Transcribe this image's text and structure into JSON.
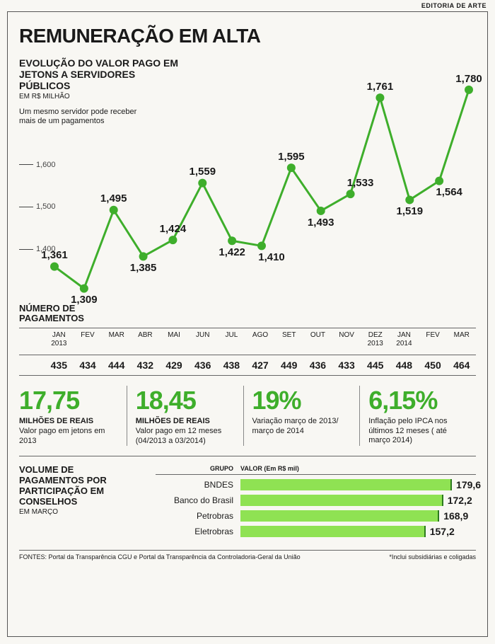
{
  "credit": "EDITORIA DE ARTE",
  "title": "REMUNERAÇÃO EM ALTA",
  "subtitle": "EVOLUÇÃO DO VALOR PAGO EM JETONS A SERVIDORES PÚBLICOS",
  "unit": "EM R$ MILHÃO",
  "note": "Um mesmo servidor pode receber mais de um pagamentos",
  "chart": {
    "type": "line",
    "ylim": [
      1300,
      1820
    ],
    "ytick_positions": [
      1400,
      1500,
      1600
    ],
    "ytick_labels": [
      "1,400",
      "1,500",
      "1,600"
    ],
    "line_color": "#3eae2b",
    "marker_color": "#3eae2b",
    "line_width": 3,
    "marker_radius": 6,
    "background_color": "#f8f7f3",
    "label_fontsize": 15,
    "points": [
      {
        "month": "JAN",
        "year": "2013",
        "value": 1361,
        "label": "1,361",
        "label_pos": "above"
      },
      {
        "month": "FEV",
        "year": "",
        "value": 1309,
        "label": "1,309",
        "label_pos": "below"
      },
      {
        "month": "MAR",
        "year": "",
        "value": 1495,
        "label": "1,495",
        "label_pos": "above"
      },
      {
        "month": "ABR",
        "year": "",
        "value": 1385,
        "label": "1,385",
        "label_pos": "below"
      },
      {
        "month": "MAI",
        "year": "",
        "value": 1424,
        "label": "1,424",
        "label_pos": "above"
      },
      {
        "month": "JUN",
        "year": "",
        "value": 1559,
        "label": "1,559",
        "label_pos": "above"
      },
      {
        "month": "JUL",
        "year": "",
        "value": 1422,
        "label": "1,422",
        "label_pos": "below"
      },
      {
        "month": "AGO",
        "year": "",
        "value": 1410,
        "label": "1,410",
        "label_pos": "below-right"
      },
      {
        "month": "SET",
        "year": "",
        "value": 1595,
        "label": "1,595",
        "label_pos": "above"
      },
      {
        "month": "OUT",
        "year": "",
        "value": 1493,
        "label": "1,493",
        "label_pos": "below"
      },
      {
        "month": "NOV",
        "year": "",
        "value": 1533,
        "label": "1,533",
        "label_pos": "above-right"
      },
      {
        "month": "DEZ",
        "year": "2013",
        "value": 1761,
        "label": "1,761",
        "label_pos": "above"
      },
      {
        "month": "JAN",
        "year": "2014",
        "value": 1519,
        "label": "1,519",
        "label_pos": "below"
      },
      {
        "month": "FEV",
        "year": "",
        "value": 1564,
        "label": "1,564",
        "label_pos": "below-right"
      },
      {
        "month": "MAR",
        "year": "",
        "value": 1780,
        "label": "1,780",
        "label_pos": "above"
      }
    ]
  },
  "payments": {
    "title_line1": "NÚMERO DE",
    "title_line2": "PAGAMENTOS",
    "values": [
      "435",
      "434",
      "444",
      "432",
      "429",
      "436",
      "438",
      "427",
      "449",
      "436",
      "433",
      "445",
      "448",
      "450",
      "464"
    ]
  },
  "stats": [
    {
      "big": "17,75",
      "label": "MILHÕES DE REAIS",
      "desc": "Valor pago em jetons em 2013",
      "color": "#3eae2b"
    },
    {
      "big": "18,45",
      "label": "MILHÕES DE REAIS",
      "desc": "Valor pago em 12 meses (04/2013 a 03/2014)",
      "color": "#3eae2b"
    },
    {
      "big": "19%",
      "label": "",
      "desc": "Variação março de 2013/ março de 2014",
      "color": "#3eae2b"
    },
    {
      "big": "6,15%",
      "label": "",
      "desc": "Inflação pelo IPCA nos últimos 12 meses ( até março 2014)",
      "color": "#3eae2b"
    }
  ],
  "volume": {
    "title_lines": [
      "VOLUME DE",
      "PAGAMENTOS POR",
      "PARTICIPAÇÃO EM",
      "CONSELHOS"
    ],
    "unit": "EM MARÇO",
    "head_group": "GRUPO",
    "head_value": "VALOR (Em R$ mil)",
    "max": 200,
    "bar_color": "#8fe253",
    "bars": [
      {
        "name": "BNDES",
        "value": 179.6,
        "label": "179,6"
      },
      {
        "name": "Banco do Brasil",
        "value": 172.2,
        "label": "172,2"
      },
      {
        "name": "Petrobras",
        "value": 168.9,
        "label": "168,9"
      },
      {
        "name": "Eletrobras",
        "value": 157.2,
        "label": "157,2"
      }
    ]
  },
  "footer": {
    "source": "FONTES: Portal da Transparência CGU e Portal da Transparência da Controladoria-Geral da União",
    "note": "*Inclui subsidiárias e coligadas"
  }
}
